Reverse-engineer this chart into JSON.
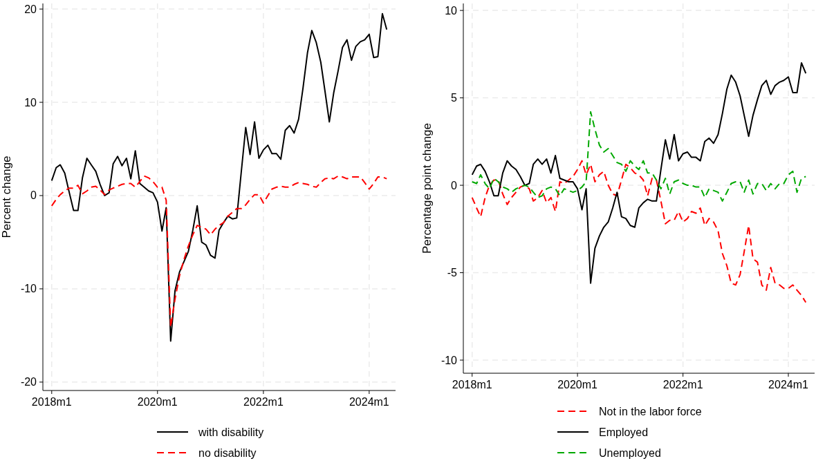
{
  "chart_data": [
    {
      "type": "line",
      "ylabel": "Percent change",
      "grid": true,
      "legend": "bottom",
      "x": [
        "2018-01",
        "2018-02",
        "2018-03",
        "2018-04",
        "2018-05",
        "2018-06",
        "2018-07",
        "2018-08",
        "2018-09",
        "2018-10",
        "2018-11",
        "2018-12",
        "2019-01",
        "2019-02",
        "2019-03",
        "2019-04",
        "2019-05",
        "2019-06",
        "2019-07",
        "2019-08",
        "2019-09",
        "2019-10",
        "2019-11",
        "2019-12",
        "2020-01",
        "2020-02",
        "2020-03",
        "2020-04",
        "2020-05",
        "2020-06",
        "2020-07",
        "2020-08",
        "2020-09",
        "2020-10",
        "2020-11",
        "2020-12",
        "2021-01",
        "2021-02",
        "2021-03",
        "2021-04",
        "2021-05",
        "2021-06",
        "2021-07",
        "2021-08",
        "2021-09",
        "2021-10",
        "2021-11",
        "2021-12",
        "2022-01",
        "2022-02",
        "2022-03",
        "2022-04",
        "2022-05",
        "2022-06",
        "2022-07",
        "2022-08",
        "2022-09",
        "2022-10",
        "2022-11",
        "2022-12",
        "2023-01",
        "2023-02",
        "2023-03",
        "2023-04",
        "2023-05",
        "2023-06",
        "2023-07",
        "2023-08",
        "2023-09",
        "2023-10",
        "2023-11",
        "2023-12",
        "2024-01",
        "2024-02",
        "2024-03",
        "2024-04",
        "2024-05"
      ],
      "xlim": [
        "2017-11",
        "2024-07"
      ],
      "xticks": [
        {
          "value": "2018-01",
          "label": "2018m1"
        },
        {
          "value": "2020-01",
          "label": "2020m1"
        },
        {
          "value": "2022-01",
          "label": "2022m1"
        },
        {
          "value": "2024-01",
          "label": "2024m1"
        }
      ],
      "ylim": [
        -20.9,
        20.6
      ],
      "yticks": [
        -20,
        -10,
        0,
        10,
        20
      ],
      "series": [
        {
          "name": "with disability",
          "color": "#000000",
          "line_style": "solid",
          "values": [
            1.6,
            3.0,
            3.3,
            2.4,
            0.4,
            -1.6,
            -1.6,
            1.9,
            4.0,
            3.3,
            2.6,
            1.2,
            0.0,
            0.3,
            3.4,
            4.2,
            3.2,
            4.0,
            1.8,
            4.8,
            1.3,
            0.9,
            0.5,
            0.3,
            -0.7,
            -3.8,
            -1.3,
            -15.6,
            -10.2,
            -8.2,
            -7.1,
            -6.0,
            -3.7,
            -1.1,
            -5.0,
            -5.3,
            -6.4,
            -6.7,
            -3.7,
            -2.9,
            -2.2,
            -2.5,
            -2.4,
            2.5,
            7.3,
            4.4,
            7.9,
            4.0,
            4.9,
            5.4,
            4.5,
            4.5,
            3.9,
            7.0,
            7.5,
            6.7,
            8.2,
            11.5,
            15.3,
            17.7,
            16.4,
            14.3,
            11.3,
            7.9,
            11.0,
            13.4,
            15.9,
            16.7,
            14.5,
            16.0,
            16.5,
            16.7,
            17.3,
            14.8,
            14.9,
            19.5,
            17.8
          ]
        },
        {
          "name": "no disability",
          "color": "#ff0000",
          "line_style": "dashed",
          "values": [
            -1.1,
            -0.4,
            0.1,
            0.5,
            0.8,
            0.8,
            1.1,
            0.2,
            0.5,
            0.9,
            1.0,
            0.6,
            0.1,
            0.6,
            0.8,
            1.0,
            1.2,
            1.3,
            1.3,
            0.9,
            1.5,
            2.1,
            1.9,
            1.5,
            0.9,
            0.9,
            -0.5,
            -14.1,
            -11.1,
            -8.6,
            -6.9,
            -5.4,
            -4.2,
            -3.2,
            -3.4,
            -3.6,
            -4.2,
            -3.6,
            -3.2,
            -2.9,
            -2.2,
            -1.8,
            -1.4,
            -1.4,
            -1.0,
            -0.4,
            0.1,
            0.1,
            -0.8,
            0.0,
            0.7,
            0.9,
            1.0,
            0.9,
            0.9,
            1.2,
            1.4,
            1.3,
            1.2,
            1.0,
            0.9,
            1.4,
            1.8,
            1.9,
            1.8,
            2.1,
            2.0,
            1.8,
            2.0,
            2.0,
            2.0,
            1.4,
            0.7,
            1.3,
            2.0,
            2.0,
            1.8
          ]
        }
      ]
    },
    {
      "type": "line",
      "ylabel": "Percentage point change",
      "grid": true,
      "legend": "bottom",
      "x": [
        "2018-01",
        "2018-02",
        "2018-03",
        "2018-04",
        "2018-05",
        "2018-06",
        "2018-07",
        "2018-08",
        "2018-09",
        "2018-10",
        "2018-11",
        "2018-12",
        "2019-01",
        "2019-02",
        "2019-03",
        "2019-04",
        "2019-05",
        "2019-06",
        "2019-07",
        "2019-08",
        "2019-09",
        "2019-10",
        "2019-11",
        "2019-12",
        "2020-01",
        "2020-02",
        "2020-03",
        "2020-04",
        "2020-05",
        "2020-06",
        "2020-07",
        "2020-08",
        "2020-09",
        "2020-10",
        "2020-11",
        "2020-12",
        "2021-01",
        "2021-02",
        "2021-03",
        "2021-04",
        "2021-05",
        "2021-06",
        "2021-07",
        "2021-08",
        "2021-09",
        "2021-10",
        "2021-11",
        "2021-12",
        "2022-01",
        "2022-02",
        "2022-03",
        "2022-04",
        "2022-05",
        "2022-06",
        "2022-07",
        "2022-08",
        "2022-09",
        "2022-10",
        "2022-11",
        "2022-12",
        "2023-01",
        "2023-02",
        "2023-03",
        "2023-04",
        "2023-05",
        "2023-06",
        "2023-07",
        "2023-08",
        "2023-09",
        "2023-10",
        "2023-11",
        "2023-12",
        "2024-01",
        "2024-02",
        "2024-03",
        "2024-04",
        "2024-05"
      ],
      "xlim": [
        "2017-11",
        "2024-07"
      ],
      "xticks": [
        {
          "value": "2018-01",
          "label": "2018m1"
        },
        {
          "value": "2020-01",
          "label": "2020m1"
        },
        {
          "value": "2022-01",
          "label": "2022m1"
        },
        {
          "value": "2024-01",
          "label": "2024m1"
        }
      ],
      "ylim": [
        -10.75,
        10.4
      ],
      "yticks": [
        -10,
        -5,
        0,
        5,
        10
      ],
      "series": [
        {
          "name": "Not in the labor force",
          "color": "#ff0000",
          "line_style": "dashed",
          "values": [
            -0.7,
            -1.3,
            -1.8,
            -0.7,
            0.0,
            0.3,
            0.3,
            -0.5,
            -1.1,
            -0.7,
            -0.4,
            -0.1,
            0.0,
            -0.2,
            -0.9,
            -0.7,
            -0.3,
            -1.0,
            -0.7,
            -1.5,
            0.2,
            0.1,
            0.3,
            0.5,
            0.9,
            1.4,
            0.6,
            1.2,
            0.2,
            0.6,
            0.8,
            0.0,
            -0.5,
            -0.6,
            0.3,
            1.2,
            1.0,
            0.7,
            0.6,
            0.3,
            -0.6,
            0.4,
            0.3,
            -0.9,
            -2.2,
            -2.0,
            -2.0,
            -1.5,
            -2.1,
            -1.9,
            -1.5,
            -1.6,
            -1.3,
            -2.3,
            -1.9,
            -2.1,
            -2.6,
            -3.9,
            -4.6,
            -5.6,
            -5.7,
            -5.1,
            -3.8,
            -2.3,
            -4.2,
            -4.4,
            -5.7,
            -6.0,
            -4.7,
            -5.6,
            -5.7,
            -5.9,
            -5.9,
            -5.7,
            -6.0,
            -6.3,
            -6.7
          ]
        },
        {
          "name": "Employed",
          "color": "#000000",
          "line_style": "solid",
          "values": [
            0.6,
            1.1,
            1.2,
            0.8,
            0.2,
            -0.6,
            -0.6,
            0.7,
            1.4,
            1.1,
            0.9,
            0.5,
            0.0,
            0.1,
            1.2,
            1.5,
            1.2,
            1.5,
            0.7,
            1.7,
            0.4,
            0.3,
            0.2,
            0.2,
            -0.2,
            -1.4,
            -0.2,
            -5.6,
            -3.6,
            -2.9,
            -2.4,
            -2.1,
            -1.3,
            -0.4,
            -1.8,
            -1.9,
            -2.3,
            -2.4,
            -1.3,
            -1.0,
            -0.8,
            -0.9,
            -0.9,
            0.9,
            2.6,
            1.5,
            2.9,
            1.4,
            1.8,
            1.9,
            1.6,
            1.6,
            1.4,
            2.5,
            2.7,
            2.4,
            2.9,
            4.1,
            5.5,
            6.3,
            5.9,
            5.1,
            4.0,
            2.8,
            4.0,
            4.9,
            5.7,
            6.0,
            5.2,
            5.7,
            5.9,
            6.0,
            6.2,
            5.3,
            5.3,
            7.0,
            6.4
          ]
        },
        {
          "name": "Unemployed",
          "color": "#00a800",
          "line_style": "dashed",
          "values": [
            0.2,
            0.1,
            0.6,
            0.1,
            -0.2,
            0.4,
            0.2,
            -0.1,
            -0.2,
            -0.4,
            -0.2,
            -0.1,
            0.0,
            -0.1,
            -0.4,
            -0.7,
            -0.6,
            -0.2,
            -0.1,
            -0.2,
            -0.6,
            -0.2,
            -0.3,
            -0.4,
            -0.3,
            -0.1,
            0.2,
            4.2,
            3.2,
            2.3,
            1.9,
            2.1,
            1.7,
            1.3,
            1.2,
            0.8,
            1.4,
            1.1,
            0.9,
            1.4,
            0.7,
            0.7,
            0.3,
            -0.2,
            0.4,
            -0.5,
            0.2,
            0.3,
            0.1,
            0.0,
            0.0,
            -0.1,
            -0.1,
            -0.7,
            -0.2,
            -0.3,
            -0.4,
            -0.9,
            -0.4,
            0.1,
            0.2,
            0.2,
            -0.4,
            0.3,
            -0.5,
            0.1,
            0.1,
            -0.3,
            0.1,
            -0.2,
            0.1,
            0.1,
            0.6,
            0.8,
            -0.4,
            0.4,
            0.5
          ]
        }
      ]
    }
  ]
}
